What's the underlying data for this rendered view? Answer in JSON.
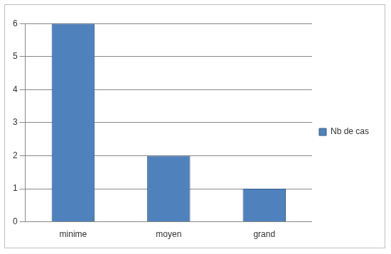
{
  "chart_data": {
    "type": "bar",
    "categories": [
      "minime",
      "moyen",
      "grand"
    ],
    "series": [
      {
        "name": "Nb de cas",
        "color": "#4f81bd",
        "values": [
          6,
          2,
          1
        ]
      }
    ],
    "ylim": [
      0,
      6
    ],
    "yticks": [
      0,
      1,
      2,
      3,
      4,
      5,
      6
    ],
    "grid": true,
    "legend": "right"
  }
}
